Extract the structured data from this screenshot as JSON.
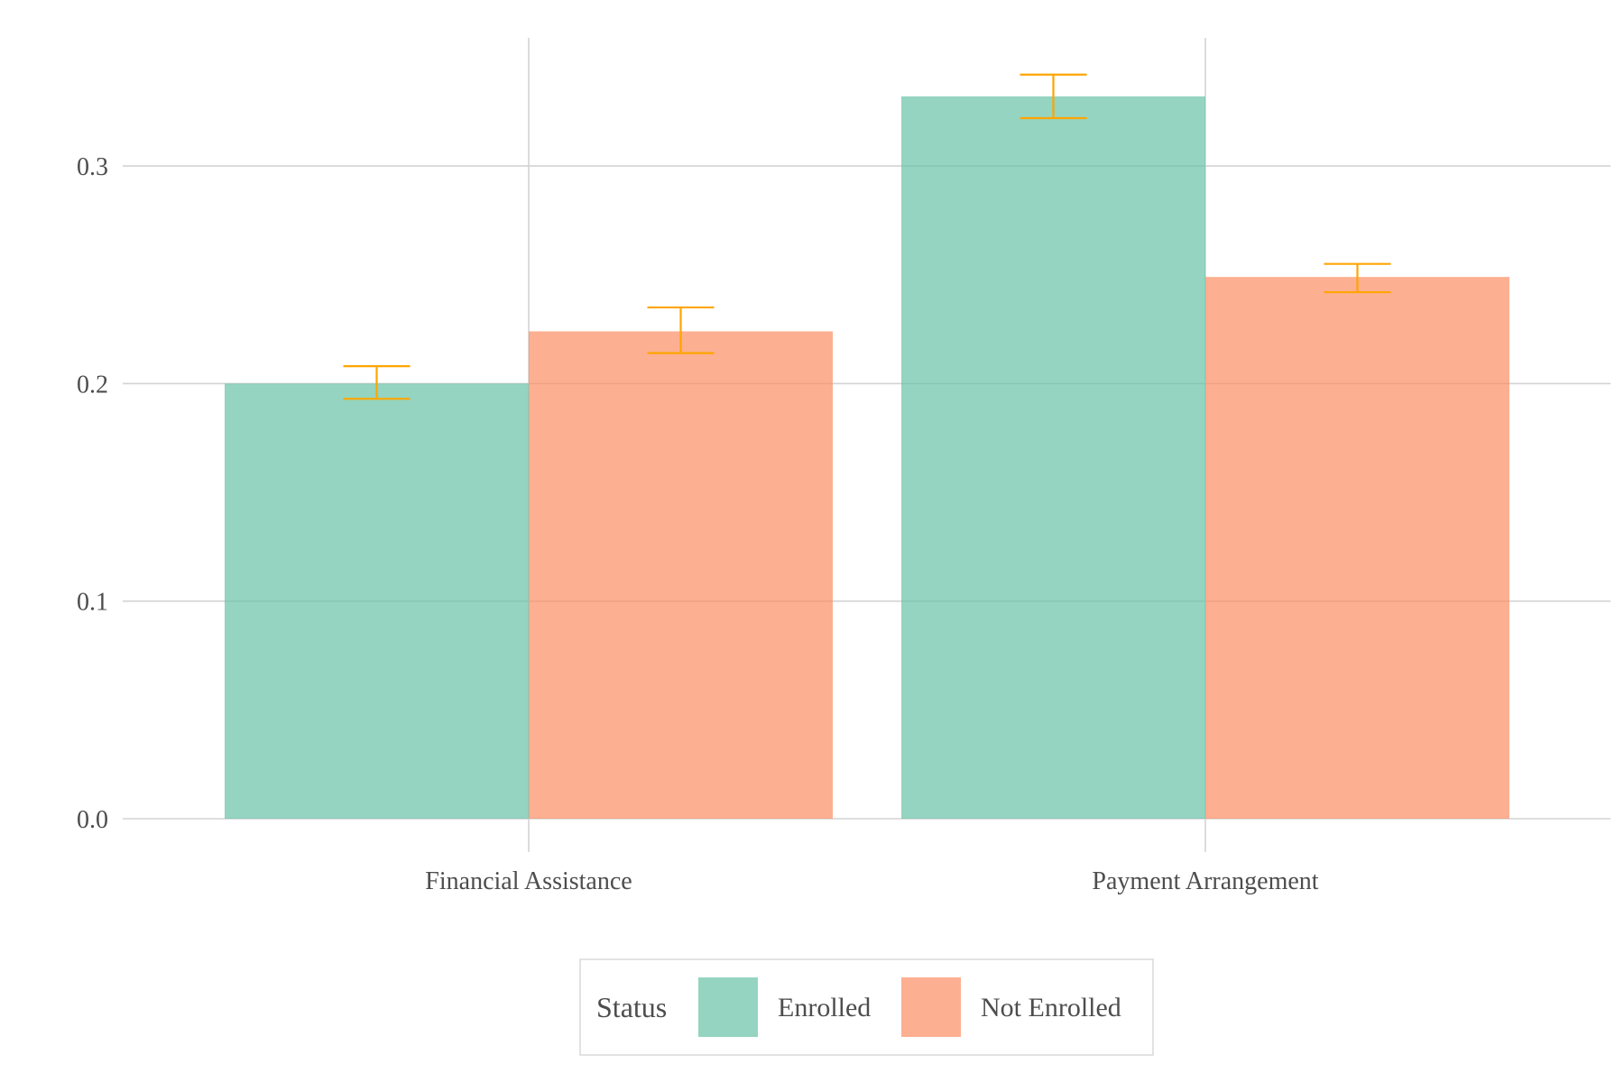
{
  "chart_data": {
    "type": "bar",
    "title": "",
    "xlabel": "",
    "ylabel": "",
    "categories": [
      "Financial Assistance",
      "Payment Arrangement"
    ],
    "series": [
      {
        "name": "Enrolled",
        "color": "#66c2a5",
        "values": [
          0.2,
          0.332
        ],
        "error_low": [
          0.193,
          0.322
        ],
        "error_high": [
          0.208,
          0.342
        ]
      },
      {
        "name": "Not Enrolled",
        "color": "#fc8d62",
        "values": [
          0.224,
          0.249
        ],
        "error_low": [
          0.214,
          0.242
        ],
        "error_high": [
          0.235,
          0.255
        ]
      }
    ],
    "ylim": [
      0,
      0.36
    ],
    "yticks": [
      0.0,
      0.1,
      0.2,
      0.3
    ],
    "ytick_labels": [
      "0.0",
      "0.1",
      "0.2",
      "0.3"
    ],
    "grid": true,
    "bar_opacity": 0.7,
    "error_bar_color": "#ffa500",
    "legend": {
      "title": "Status",
      "position": "bottom",
      "items": [
        "Enrolled",
        "Not Enrolled"
      ]
    }
  }
}
